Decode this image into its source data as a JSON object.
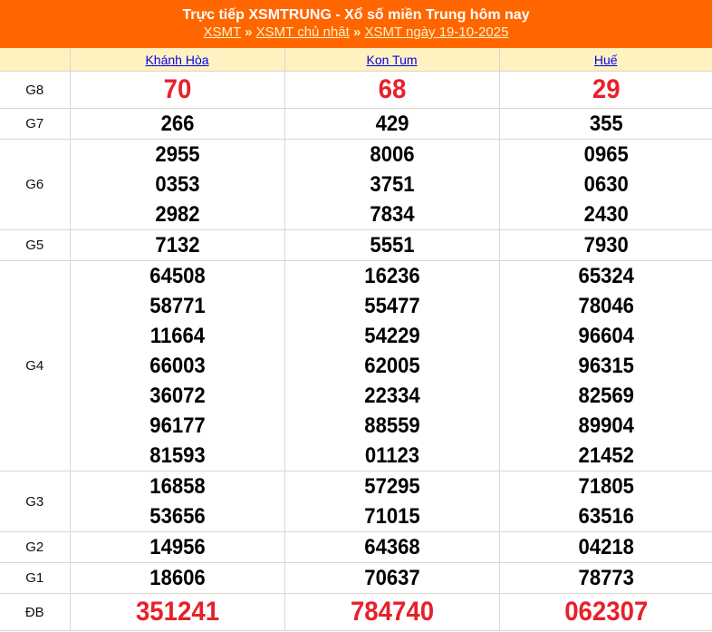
{
  "header": {
    "title": "Trực tiếp XSMTRUNG - Xổ số miền Trung hôm nay",
    "breadcrumb": [
      "XSMT",
      "XSMT chủ nhật",
      "XSMT ngày 19-10-2025"
    ],
    "separator": "»"
  },
  "colors": {
    "header_bg": "#ff6600",
    "column_header_bg": "#fff2c0",
    "highlight": "#e8202a"
  },
  "provinces": [
    "Khánh Hòa",
    "Kon Tum",
    "Huế"
  ],
  "prizes": [
    {
      "label": "G8",
      "highlight": true,
      "values": [
        [
          "70"
        ],
        [
          "68"
        ],
        [
          "29"
        ]
      ]
    },
    {
      "label": "G7",
      "values": [
        [
          "266"
        ],
        [
          "429"
        ],
        [
          "355"
        ]
      ]
    },
    {
      "label": "G6",
      "values": [
        [
          "2955",
          "0353",
          "2982"
        ],
        [
          "8006",
          "3751",
          "7834"
        ],
        [
          "0965",
          "0630",
          "2430"
        ]
      ]
    },
    {
      "label": "G5",
      "values": [
        [
          "7132"
        ],
        [
          "5551"
        ],
        [
          "7930"
        ]
      ]
    },
    {
      "label": "G4",
      "values": [
        [
          "64508",
          "58771",
          "11664",
          "66003",
          "36072",
          "96177",
          "81593"
        ],
        [
          "16236",
          "55477",
          "54229",
          "62005",
          "22334",
          "88559",
          "01123"
        ],
        [
          "65324",
          "78046",
          "96604",
          "96315",
          "82569",
          "89904",
          "21452"
        ]
      ]
    },
    {
      "label": "G3",
      "values": [
        [
          "16858",
          "53656"
        ],
        [
          "57295",
          "71015"
        ],
        [
          "71805",
          "63516"
        ]
      ]
    },
    {
      "label": "G2",
      "values": [
        [
          "14956"
        ],
        [
          "64368"
        ],
        [
          "04218"
        ]
      ]
    },
    {
      "label": "G1",
      "values": [
        [
          "18606"
        ],
        [
          "70637"
        ],
        [
          "78773"
        ]
      ]
    },
    {
      "label": "ĐB",
      "highlight": true,
      "values": [
        [
          "351241"
        ],
        [
          "784740"
        ],
        [
          "062307"
        ]
      ]
    }
  ]
}
